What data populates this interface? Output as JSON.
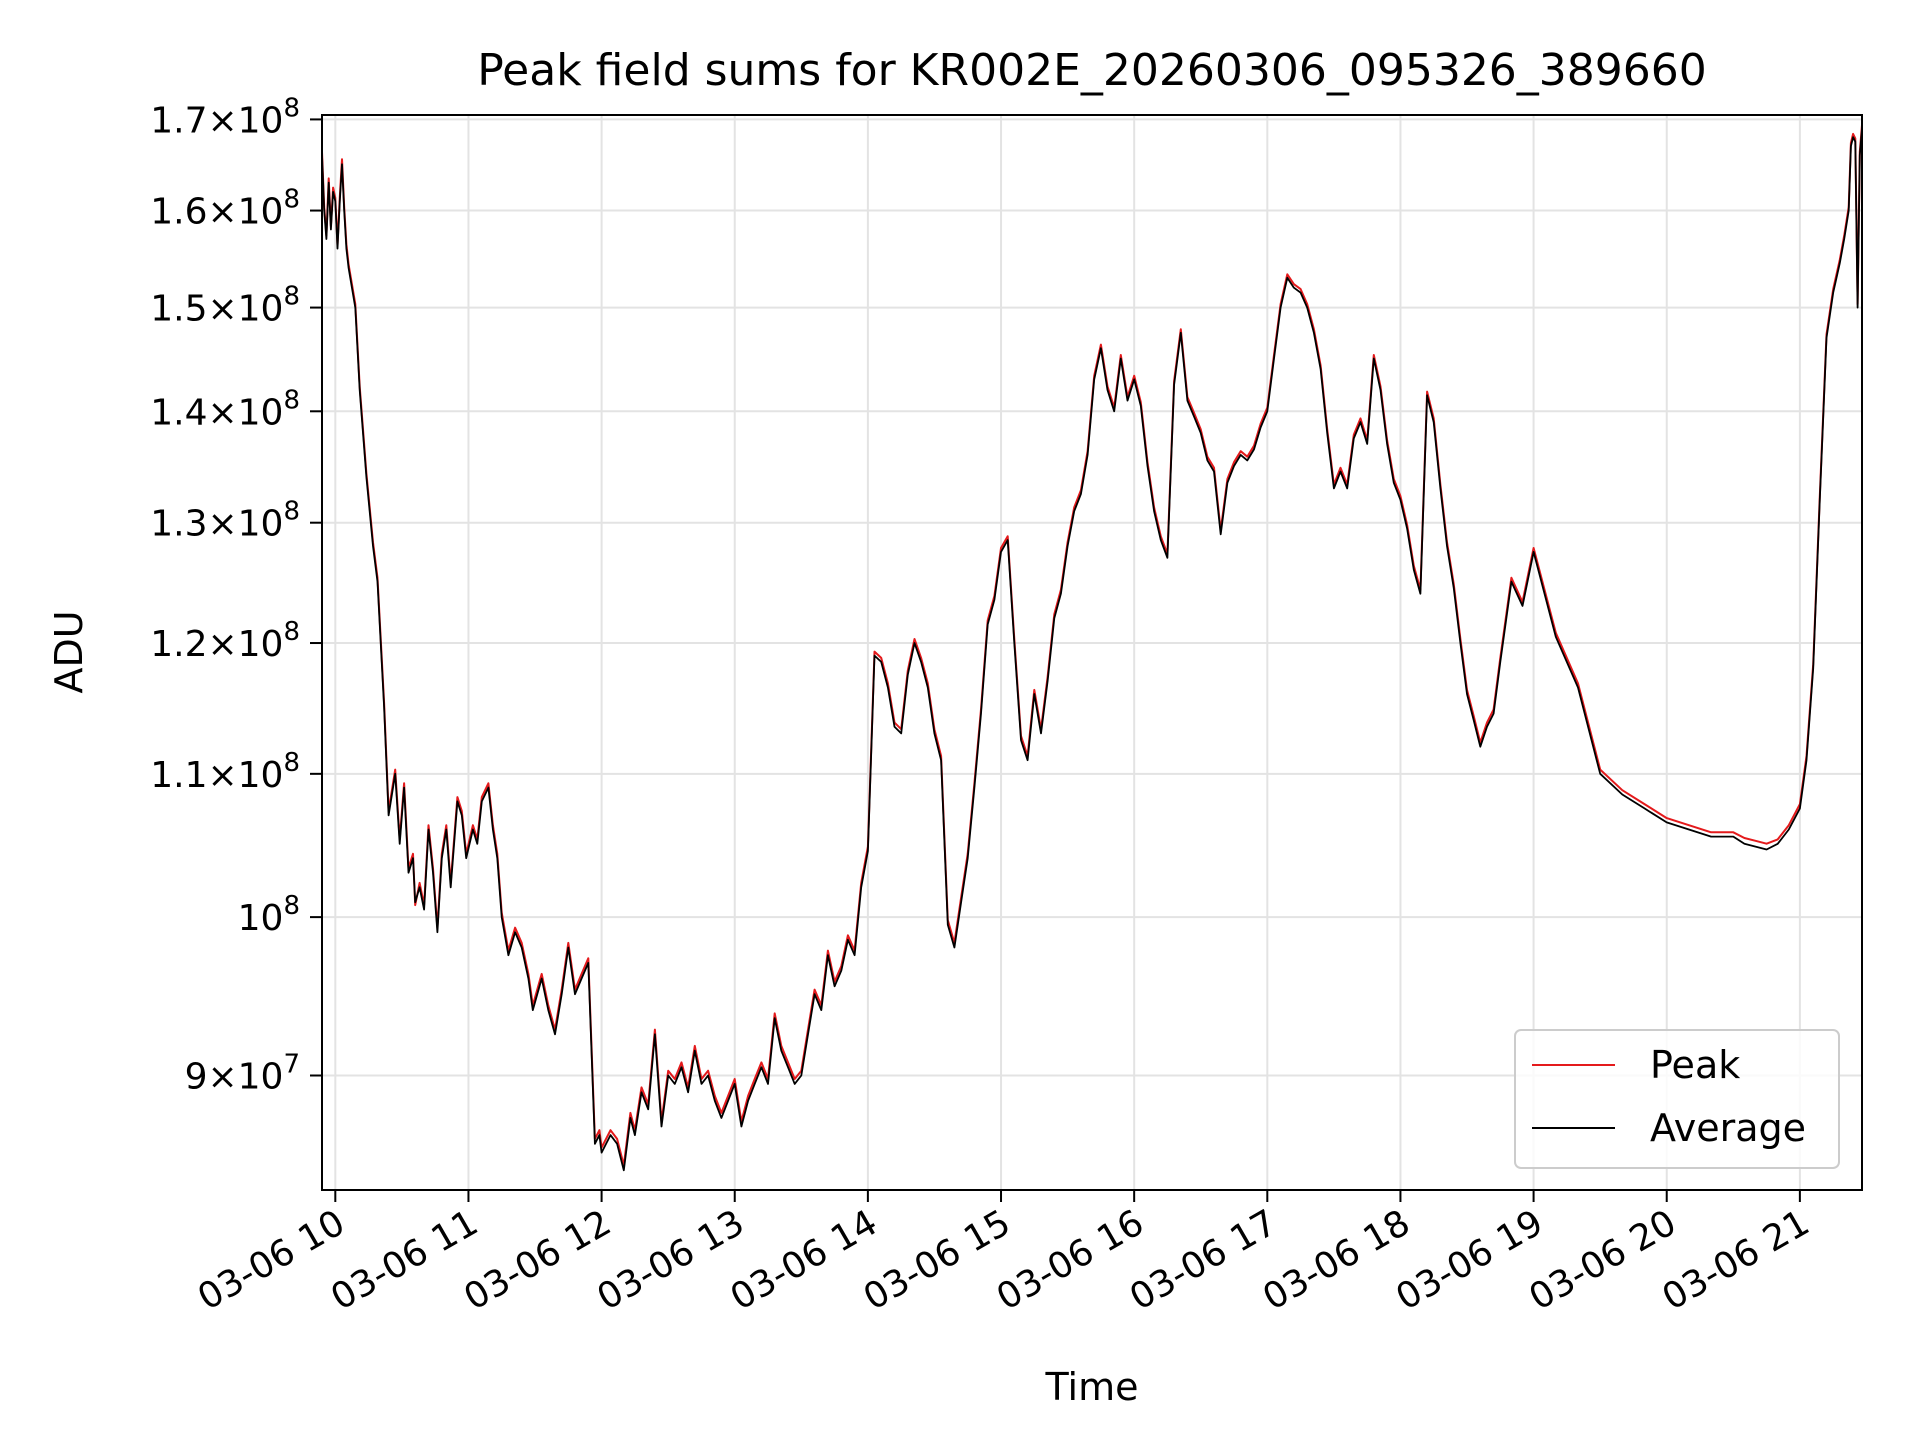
{
  "chart_data": {
    "type": "line",
    "title": "Peak field sums for KR002E_20260306_095326_389660",
    "xlabel": "Time",
    "ylabel": "ADU",
    "yscale": "log",
    "xlim": [
      "03-06 09:54",
      "03-06 21:28"
    ],
    "ylim": [
      83400000,
      170500000
    ],
    "grid": true,
    "legend_position": "lower right",
    "x_ticks": [
      "03-06 10",
      "03-06 11",
      "03-06 12",
      "03-06 13",
      "03-06 14",
      "03-06 15",
      "03-06 16",
      "03-06 17",
      "03-06 18",
      "03-06 19",
      "03-06 20",
      "03-06 21"
    ],
    "y_ticks": [
      {
        "value": 90000000,
        "mantissa": "9",
        "exponent": "7"
      },
      {
        "value": 100000000,
        "mantissa": "",
        "exponent": "8"
      },
      {
        "value": 110000000,
        "mantissa": "1.1",
        "exponent": "8"
      },
      {
        "value": 120000000,
        "mantissa": "1.2",
        "exponent": "8"
      },
      {
        "value": 130000000,
        "mantissa": "1.3",
        "exponent": "8"
      },
      {
        "value": 140000000,
        "mantissa": "1.4",
        "exponent": "8"
      },
      {
        "value": 150000000,
        "mantissa": "1.5",
        "exponent": "8"
      },
      {
        "value": 160000000,
        "mantissa": "1.6",
        "exponent": "8"
      },
      {
        "value": 170000000,
        "mantissa": "1.7",
        "exponent": "8"
      }
    ],
    "x": [
      "03-06 09:54",
      "03-06 09:55",
      "03-06 09:56",
      "03-06 09:57",
      "03-06 09:58",
      "03-06 09:59",
      "03-06 10:00",
      "03-06 10:01",
      "03-06 10:02",
      "03-06 10:03",
      "03-06 10:04",
      "03-06 10:05",
      "03-06 10:06",
      "03-06 10:09",
      "03-06 10:11",
      "03-06 10:14",
      "03-06 10:17",
      "03-06 10:19",
      "03-06 10:22",
      "03-06 10:24",
      "03-06 10:27",
      "03-06 10:29",
      "03-06 10:31",
      "03-06 10:33",
      "03-06 10:35",
      "03-06 10:36",
      "03-06 10:38",
      "03-06 10:40",
      "03-06 10:42",
      "03-06 10:44",
      "03-06 10:46",
      "03-06 10:48",
      "03-06 10:50",
      "03-06 10:52",
      "03-06 10:55",
      "03-06 10:57",
      "03-06 10:59",
      "03-06 11:02",
      "03-06 11:04",
      "03-06 11:06",
      "03-06 11:09",
      "03-06 11:11",
      "03-06 11:13",
      "03-06 11:15",
      "03-06 11:18",
      "03-06 11:21",
      "03-06 11:24",
      "03-06 11:27",
      "03-06 11:29",
      "03-06 11:33",
      "03-06 11:36",
      "03-06 11:39",
      "03-06 11:42",
      "03-06 11:45",
      "03-06 11:48",
      "03-06 11:51",
      "03-06 11:54",
      "03-06 11:57",
      "03-06 11:59",
      "03-06 12:00",
      "03-06 12:04",
      "03-06 12:07",
      "03-06 12:10",
      "03-06 12:13",
      "03-06 12:15",
      "03-06 12:18",
      "03-06 12:21",
      "03-06 12:24",
      "03-06 12:27",
      "03-06 12:30",
      "03-06 12:33",
      "03-06 12:36",
      "03-06 12:39",
      "03-06 12:42",
      "03-06 12:45",
      "03-06 12:48",
      "03-06 12:51",
      "03-06 12:54",
      "03-06 12:57",
      "03-06 13:00",
      "03-06 13:03",
      "03-06 13:06",
      "03-06 13:09",
      "03-06 13:12",
      "03-06 13:15",
      "03-06 13:18",
      "03-06 13:21",
      "03-06 13:24",
      "03-06 13:27",
      "03-06 13:30",
      "03-06 13:33",
      "03-06 13:36",
      "03-06 13:39",
      "03-06 13:42",
      "03-06 13:45",
      "03-06 13:48",
      "03-06 13:51",
      "03-06 13:54",
      "03-06 13:57",
      "03-06 14:00",
      "03-06 14:03",
      "03-06 14:06",
      "03-06 14:09",
      "03-06 14:12",
      "03-06 14:15",
      "03-06 14:18",
      "03-06 14:21",
      "03-06 14:24",
      "03-06 14:27",
      "03-06 14:30",
      "03-06 14:33",
      "03-06 14:36",
      "03-06 14:39",
      "03-06 14:42",
      "03-06 14:45",
      "03-06 14:48",
      "03-06 14:51",
      "03-06 14:54",
      "03-06 14:57",
      "03-06 15:00",
      "03-06 15:03",
      "03-06 15:06",
      "03-06 15:09",
      "03-06 15:12",
      "03-06 15:15",
      "03-06 15:18",
      "03-06 15:21",
      "03-06 15:24",
      "03-06 15:27",
      "03-06 15:30",
      "03-06 15:33",
      "03-06 15:36",
      "03-06 15:39",
      "03-06 15:42",
      "03-06 15:45",
      "03-06 15:48",
      "03-06 15:51",
      "03-06 15:54",
      "03-06 15:57",
      "03-06 16:00",
      "03-06 16:03",
      "03-06 16:06",
      "03-06 16:09",
      "03-06 16:12",
      "03-06 16:15",
      "03-06 16:18",
      "03-06 16:21",
      "03-06 16:24",
      "03-06 16:27",
      "03-06 16:30",
      "03-06 16:33",
      "03-06 16:36",
      "03-06 16:39",
      "03-06 16:42",
      "03-06 16:45",
      "03-06 16:48",
      "03-06 16:51",
      "03-06 16:54",
      "03-06 16:57",
      "03-06 17:00",
      "03-06 17:03",
      "03-06 17:06",
      "03-06 17:09",
      "03-06 17:12",
      "03-06 17:15",
      "03-06 17:18",
      "03-06 17:21",
      "03-06 17:24",
      "03-06 17:27",
      "03-06 17:30",
      "03-06 17:33",
      "03-06 17:36",
      "03-06 17:39",
      "03-06 17:42",
      "03-06 17:45",
      "03-06 17:48",
      "03-06 17:51",
      "03-06 17:54",
      "03-06 17:57",
      "03-06 18:00",
      "03-06 18:03",
      "03-06 18:06",
      "03-06 18:09",
      "03-06 18:12",
      "03-06 18:15",
      "03-06 18:18",
      "03-06 18:21",
      "03-06 18:24",
      "03-06 18:27",
      "03-06 18:30",
      "03-06 18:33",
      "03-06 18:36",
      "03-06 18:39",
      "03-06 18:42",
      "03-06 18:45",
      "03-06 18:50",
      "03-06 18:55",
      "03-06 19:00",
      "03-06 19:10",
      "03-06 19:20",
      "03-06 19:30",
      "03-06 19:40",
      "03-06 19:50",
      "03-06 20:00",
      "03-06 20:10",
      "03-06 20:20",
      "03-06 20:30",
      "03-06 20:35",
      "03-06 20:40",
      "03-06 20:45",
      "03-06 20:50",
      "03-06 20:55",
      "03-06 21:00",
      "03-06 21:03",
      "03-06 21:06",
      "03-06 21:09",
      "03-06 21:12",
      "03-06 21:15",
      "03-06 21:18",
      "03-06 21:20",
      "03-06 21:22",
      "03-06 21:23",
      "03-06 21:24",
      "03-06 21:25",
      "03-06 21:26",
      "03-06 21:27",
      "03-06 21:28"
    ],
    "series": [
      {
        "name": "Average",
        "color": "#000000",
        "values": [
          166000000,
          160000000,
          157000000,
          163000000,
          158000000,
          162000000,
          161000000,
          156000000,
          161000000,
          165000000,
          160000000,
          156000000,
          154000000,
          150000000,
          142000000,
          134000000,
          128000000,
          125000000,
          115000000,
          107000000,
          110000000,
          105000000,
          109000000,
          103000000,
          104000000,
          101000000,
          102000000,
          100500000,
          106000000,
          103000000,
          99000000,
          104000000,
          106000000,
          102000000,
          108000000,
          107000000,
          104000000,
          106000000,
          105000000,
          108000000,
          109000000,
          106000000,
          104000000,
          100000000,
          97500000,
          99000000,
          98000000,
          96000000,
          94000000,
          96000000,
          94000000,
          92500000,
          95000000,
          98000000,
          95000000,
          96000000,
          97000000,
          86000000,
          86500000,
          85500000,
          86500000,
          86000000,
          84500000,
          87500000,
          86500000,
          89000000,
          88000000,
          92500000,
          87000000,
          90000000,
          89500000,
          90500000,
          89000000,
          91500000,
          89500000,
          90000000,
          88500000,
          87500000,
          88500000,
          89500000,
          87000000,
          88500000,
          89500000,
          90500000,
          89500000,
          93500000,
          91500000,
          90500000,
          89500000,
          90000000,
          92500000,
          95000000,
          94000000,
          97500000,
          95500000,
          96500000,
          98500000,
          97500000,
          102000000,
          104500000,
          119000000,
          118500000,
          116500000,
          113500000,
          113000000,
          117500000,
          120000000,
          118500000,
          116500000,
          113000000,
          111000000,
          99500000,
          98000000,
          101000000,
          104000000,
          109000000,
          114500000,
          121500000,
          123500000,
          127500000,
          128500000,
          120000000,
          112500000,
          111000000,
          116000000,
          113000000,
          117000000,
          122000000,
          124000000,
          128000000,
          131000000,
          132500000,
          136000000,
          143000000,
          146000000,
          142000000,
          140000000,
          145000000,
          141000000,
          143000000,
          140500000,
          135000000,
          131000000,
          128500000,
          127000000,
          142500000,
          147500000,
          141000000,
          139500000,
          138000000,
          135500000,
          134500000,
          129000000,
          133500000,
          135000000,
          136000000,
          135500000,
          136500000,
          138500000,
          140000000,
          145000000,
          150000000,
          153000000,
          152000000,
          151500000,
          150000000,
          147500000,
          144000000,
          138000000,
          133000000,
          134500000,
          133000000,
          137500000,
          139000000,
          137000000,
          145000000,
          142000000,
          137000000,
          133500000,
          132000000,
          129500000,
          126000000,
          124000000,
          141500000,
          139000000,
          133000000,
          128000000,
          124500000,
          120000000,
          116000000,
          114000000,
          112000000,
          113500000,
          114500000,
          118500000,
          125000000,
          123000000,
          127500000,
          120500000,
          116500000,
          110000000,
          108500000,
          107500000,
          106500000,
          106000000,
          105500000,
          105500000,
          105000000,
          104800000,
          104600000,
          105000000,
          106000000,
          107500000,
          111000000,
          118000000,
          132000000,
          147000000,
          151500000,
          154500000,
          157000000,
          160000000,
          167000000,
          168000000,
          167500000,
          150000000,
          166000000,
          169000000
        ]
      },
      {
        "name": "Peak",
        "color": "#e41a1c",
        "values": [
          166200000,
          160200000,
          157200000,
          163300000,
          158200000,
          162300000,
          161200000,
          156200000,
          161300000,
          165400000,
          160200000,
          156300000,
          154200000,
          150200000,
          142200000,
          134200000,
          128200000,
          125200000,
          115200000,
          107200000,
          110200000,
          105200000,
          109200000,
          103200000,
          104200000,
          100700000,
          102200000,
          100700000,
          106200000,
          103200000,
          99200000,
          104200000,
          106200000,
          102200000,
          108200000,
          107200000,
          104200000,
          106200000,
          105200000,
          108200000,
          109200000,
          106200000,
          104200000,
          100200000,
          97700000,
          99200000,
          98200000,
          96200000,
          94200000,
          96200000,
          94200000,
          92700000,
          95200000,
          98200000,
          95200000,
          96200000,
          97200000,
          86200000,
          86700000,
          85700000,
          86700000,
          86200000,
          84700000,
          87700000,
          86700000,
          89200000,
          88200000,
          92700000,
          87200000,
          90200000,
          89700000,
          90700000,
          89200000,
          91700000,
          89700000,
          90200000,
          88700000,
          87700000,
          88700000,
          89700000,
          87200000,
          88700000,
          89700000,
          90700000,
          89700000,
          93700000,
          91700000,
          90700000,
          89700000,
          90200000,
          92700000,
          95200000,
          94200000,
          97700000,
          95700000,
          96700000,
          98700000,
          97700000,
          102200000,
          104700000,
          119200000,
          118700000,
          116700000,
          113700000,
          113200000,
          117700000,
          120200000,
          118700000,
          116700000,
          113200000,
          111200000,
          99700000,
          98200000,
          101200000,
          104200000,
          109200000,
          114700000,
          121700000,
          123700000,
          127700000,
          128700000,
          120200000,
          112700000,
          111200000,
          116200000,
          113200000,
          117200000,
          122200000,
          124200000,
          128200000,
          131200000,
          132700000,
          136200000,
          143200000,
          146200000,
          142200000,
          140200000,
          145200000,
          141200000,
          143200000,
          140700000,
          135200000,
          131200000,
          128700000,
          127200000,
          142700000,
          147700000,
          141200000,
          139700000,
          138200000,
          135700000,
          134700000,
          129200000,
          133700000,
          135200000,
          136200000,
          135700000,
          136700000,
          138700000,
          140200000,
          145200000,
          150200000,
          153200000,
          152200000,
          151700000,
          150200000,
          147700000,
          144200000,
          138200000,
          133200000,
          134700000,
          133200000,
          137700000,
          139200000,
          137200000,
          145200000,
          142200000,
          137200000,
          133700000,
          132200000,
          129700000,
          126200000,
          124200000,
          141700000,
          139200000,
          133200000,
          128200000,
          124700000,
          120200000,
          116200000,
          114200000,
          112200000,
          113700000,
          114700000,
          118700000,
          125200000,
          123200000,
          127700000,
          120700000,
          116700000,
          110200000,
          108700000,
          107700000,
          106700000,
          106200000,
          105700000,
          105700000,
          105300000,
          105100000,
          104900000,
          105200000,
          106200000,
          107700000,
          111200000,
          118200000,
          132200000,
          147200000,
          151700000,
          154700000,
          157200000,
          160200000,
          167200000,
          168200000,
          167700000,
          150200000,
          166200000,
          169200000
        ]
      }
    ]
  }
}
